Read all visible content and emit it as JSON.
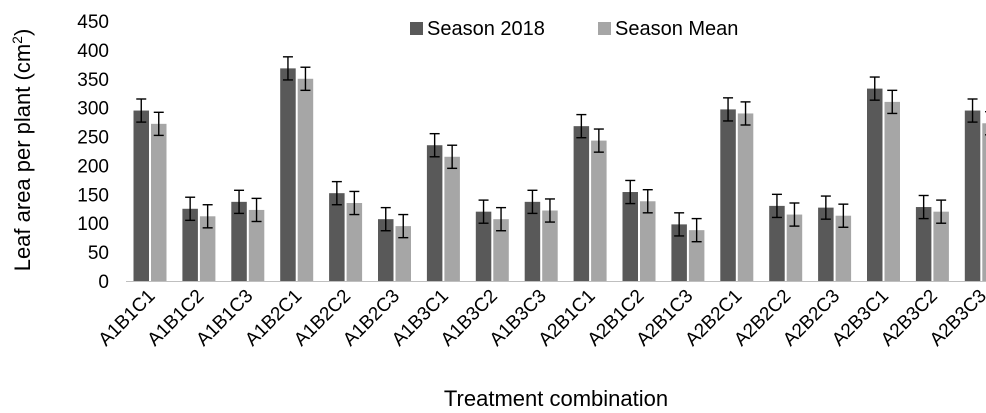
{
  "chart_data": {
    "type": "bar",
    "title": "",
    "xlabel": "Treatment combination",
    "ylabel_main": "Leaf area per plant (cm",
    "ylabel_sup": "2",
    "ylabel_close": ")",
    "ylim": [
      0,
      450
    ],
    "yticks": [
      0,
      50,
      100,
      150,
      200,
      250,
      300,
      350,
      400,
      450
    ],
    "grid": false,
    "legend_position": "top-center",
    "categories": [
      "A1B1C1",
      "A1B1C2",
      "A1B1C3",
      "A1B2C1",
      "A1B2C2",
      "A1B2C3",
      "A1B3C1",
      "A1B3C2",
      "A1B3C3",
      "A2B1C1",
      "A2B1C2",
      "A2B1C3",
      "A2B2C1",
      "A2B2C2",
      "A2B2C3",
      "A2B3C1",
      "A2B3C2",
      "A2B3C3"
    ],
    "series": [
      {
        "name": "Season 2018",
        "color": "#595959",
        "values": [
          295,
          125,
          137,
          368,
          152,
          107,
          235,
          120,
          137,
          268,
          154,
          98,
          297,
          130,
          127,
          333,
          128,
          295
        ],
        "error": [
          20,
          20,
          20,
          20,
          20,
          20,
          20,
          20,
          20,
          20,
          20,
          20,
          20,
          20,
          20,
          20,
          20,
          20
        ]
      },
      {
        "name": "Season Mean",
        "color": "#a6a6a6",
        "values": [
          272,
          112,
          123,
          350,
          135,
          95,
          215,
          107,
          122,
          243,
          138,
          88,
          290,
          115,
          113,
          310,
          120,
          273
        ],
        "error": [
          20,
          20,
          20,
          20,
          20,
          20,
          20,
          20,
          20,
          20,
          20,
          20,
          20,
          20,
          20,
          20,
          20,
          20
        ]
      }
    ]
  }
}
